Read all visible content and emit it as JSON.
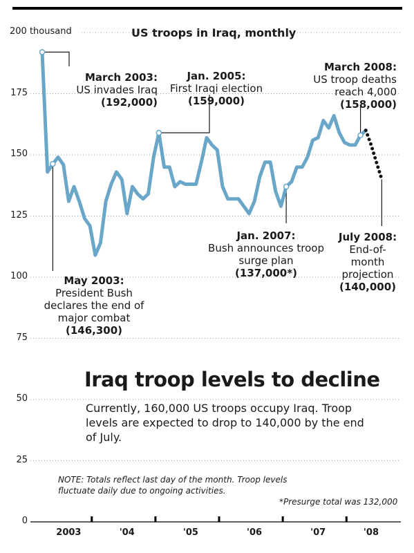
{
  "chart_data": {
    "type": "line",
    "title": "US troops in Iraq, monthly",
    "y_top_label": "200 thousand",
    "y_ticks": [
      0,
      25,
      50,
      75,
      100,
      125,
      150,
      175,
      200
    ],
    "y_tick_labels": [
      "0",
      "25",
      "50",
      "75",
      "100",
      "125",
      "150",
      "175",
      "200 thousand"
    ],
    "ylim": [
      0,
      200
    ],
    "x_labels": [
      "2003",
      "'04",
      "'05",
      "'06",
      "'07",
      "'08"
    ],
    "xlim": [
      "2003-03",
      "2008-08"
    ],
    "grid": "horizontal dotted",
    "series": [
      {
        "style": "solid",
        "color": "#6aa6c8",
        "x": [
          "2003-03",
          "2003-04",
          "2003-05",
          "2003-06",
          "2003-07",
          "2003-08",
          "2003-09",
          "2003-10",
          "2003-11",
          "2003-12",
          "2004-01",
          "2004-02",
          "2004-03",
          "2004-04",
          "2004-05",
          "2004-06",
          "2004-07",
          "2004-08",
          "2004-09",
          "2004-10",
          "2004-11",
          "2004-12",
          "2005-01",
          "2005-02",
          "2005-03",
          "2005-04",
          "2005-05",
          "2005-06",
          "2005-07",
          "2005-08",
          "2005-09",
          "2005-10",
          "2005-11",
          "2005-12",
          "2006-01",
          "2006-02",
          "2006-03",
          "2006-04",
          "2006-05",
          "2006-06",
          "2006-07",
          "2006-08",
          "2006-09",
          "2006-10",
          "2006-11",
          "2006-12",
          "2007-01",
          "2007-02",
          "2007-03",
          "2007-04",
          "2007-05",
          "2007-06",
          "2007-07",
          "2007-08",
          "2007-09",
          "2007-10",
          "2007-11",
          "2007-12",
          "2008-01",
          "2008-02",
          "2008-03",
          "2008-04"
        ],
        "values": [
          192,
          143,
          146.3,
          149,
          146,
          131,
          137,
          131,
          124,
          121,
          109,
          114,
          131,
          138,
          143,
          140,
          126,
          137,
          134,
          132,
          134,
          149,
          159,
          145,
          145,
          137,
          139,
          138,
          138,
          138,
          147,
          157,
          154,
          152,
          137,
          132,
          132,
          132,
          129,
          126,
          131,
          141,
          147,
          147,
          135,
          129,
          137,
          139,
          145,
          145,
          149,
          156,
          157,
          164,
          161,
          166,
          159,
          155,
          154,
          154,
          158,
          160
        ]
      },
      {
        "style": "dotted",
        "color": "#111111",
        "x": [
          "2008-04",
          "2008-05",
          "2008-06",
          "2008-07"
        ],
        "values": [
          160,
          154,
          147,
          140
        ]
      }
    ],
    "annotations": [
      {
        "x": "2003-03",
        "y": 192,
        "bold": "March 2003:",
        "text": "US invades Iraq",
        "value": "(192,000)"
      },
      {
        "x": "2003-05",
        "y": 146.3,
        "bold": "May 2003:",
        "text": "President Bush declares the end of major combat",
        "value": "(146,300)"
      },
      {
        "x": "2005-01",
        "y": 159,
        "bold": "Jan. 2005:",
        "text": "First Iraqi election",
        "value": "(159,000)"
      },
      {
        "x": "2007-01",
        "y": 137,
        "bold": "Jan. 2007:",
        "text": "Bush announces troop surge plan",
        "value": "(137,000*)"
      },
      {
        "x": "2008-03",
        "y": 158,
        "bold": "March 2008:",
        "text": "US troop deaths reach 4,000",
        "value": "(158,000)"
      },
      {
        "x": "2008-07",
        "y": 140,
        "bold": "July 2008:",
        "text": "End-of-month projection",
        "value": "(140,000)"
      }
    ]
  },
  "headline": "Iraq troop levels to decline",
  "subtext": "Currently, 160,000 US troops occupy Iraq. Troop levels are expected to drop to 140,000 by the end of July.",
  "note": "NOTE: Totals reflect last day of the month. Troop levels fluctuate daily due to ongoing activities.",
  "presurge_note": "*Presurge total was 132,000",
  "colors": {
    "line": "#6aa6c8",
    "projection": "#111111",
    "grid": "#999999",
    "rule": "#000000"
  }
}
